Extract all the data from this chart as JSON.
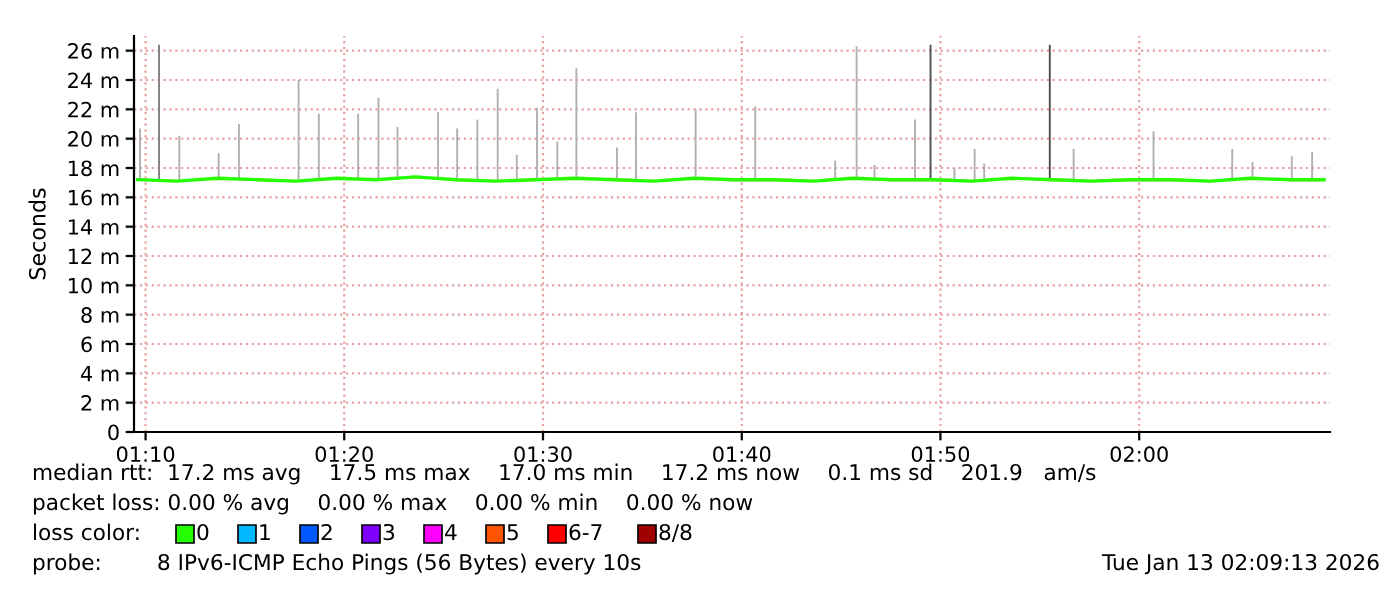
{
  "chart_data": {
    "type": "line",
    "ylabel": "Seconds",
    "xlim": [
      1.157,
      2.16
    ],
    "xticks": [
      {
        "value": 1.1667,
        "label": "01:10"
      },
      {
        "value": 1.3333,
        "label": "01:20"
      },
      {
        "value": 1.5,
        "label": "01:30"
      },
      {
        "value": 1.6667,
        "label": "01:40"
      },
      {
        "value": 1.8333,
        "label": "01:50"
      },
      {
        "value": 2.0,
        "label": "02:00"
      }
    ],
    "ylim": [
      0,
      27
    ],
    "yticks": [
      0,
      {
        "value": 2,
        "label": "2 m"
      },
      {
        "value": 4,
        "label": "4 m"
      },
      {
        "value": 6,
        "label": "6 m"
      },
      {
        "value": 8,
        "label": "8 m"
      },
      {
        "value": 10,
        "label": "10 m"
      },
      {
        "value": 12,
        "label": "12 m"
      },
      {
        "value": 14,
        "label": "14 m"
      },
      {
        "value": 16,
        "label": "16 m"
      },
      {
        "value": 18,
        "label": "18 m"
      },
      {
        "value": 20,
        "label": "20 m"
      },
      {
        "value": 22,
        "label": "22 m"
      },
      {
        "value": 24,
        "label": "24 m"
      },
      {
        "value": 26,
        "label": "26 m"
      }
    ],
    "grid": true,
    "legend": "bottom",
    "legend_title": "loss color:",
    "series": [
      {
        "type": "bar",
        "x": [
          1.162,
          1.178,
          1.195,
          1.228,
          1.245,
          1.295,
          1.312,
          1.345,
          1.362,
          1.378,
          1.412,
          1.428,
          1.445,
          1.462,
          1.478,
          1.495,
          1.512,
          1.528,
          1.562,
          1.578,
          1.628,
          1.678,
          1.745,
          1.763,
          1.778,
          1.812,
          1.825,
          1.845,
          1.862,
          1.87,
          1.925,
          1.945,
          2.012,
          2.078,
          2.095,
          2.128,
          2.145
        ],
        "base": [
          17.2,
          17.2,
          17.2,
          17.2,
          17.2,
          17.2,
          17.2,
          17.2,
          17.2,
          17.2,
          17.2,
          17.2,
          17.2,
          17.2,
          17.2,
          17.2,
          17.2,
          17.2,
          17.2,
          17.2,
          17.2,
          17.2,
          17.2,
          17.2,
          17.2,
          17.2,
          17.2,
          17.2,
          17.2,
          17.2,
          17.2,
          17.2,
          17.2,
          17.2,
          17.2,
          17.2,
          17.2
        ],
        "values": [
          3.5,
          9.2,
          3.0,
          1.8,
          3.8,
          6.8,
          4.5,
          4.5,
          5.6,
          3.6,
          4.6,
          3.5,
          4.1,
          6.2,
          1.7,
          4.9,
          2.6,
          7.6,
          2.2,
          4.6,
          4.8,
          5.0,
          1.3,
          9.1,
          1.0,
          4.1,
          9.2,
          0.8,
          2.1,
          1.1,
          9.2,
          2.1,
          3.3,
          2.1,
          1.2,
          1.6,
          1.9
        ],
        "colors": [
          "#b0b0b0",
          "#808080",
          "#b0b0b0",
          "#b0b0b0",
          "#b0b0b0",
          "#b0b0b0",
          "#b0b0b0",
          "#b0b0b0",
          "#b0b0b0",
          "#b0b0b0",
          "#b0b0b0",
          "#b0b0b0",
          "#b0b0b0",
          "#b0b0b0",
          "#b0b0b0",
          "#b0b0b0",
          "#b0b0b0",
          "#b0b0b0",
          "#b0b0b0",
          "#b0b0b0",
          "#b0b0b0",
          "#b0b0b0",
          "#b0b0b0",
          "#b0b0b0",
          "#b0b0b0",
          "#b0b0b0",
          "#505050",
          "#b0b0b0",
          "#b0b0b0",
          "#b0b0b0",
          "#505050",
          "#b0b0b0",
          "#b0b0b0",
          "#b0b0b0",
          "#b0b0b0",
          "#b0b0b0",
          "#b0b0b0"
        ]
      },
      {
        "name": "0",
        "color": "#26ff00",
        "x": [
          1.16,
          1.193,
          1.227,
          1.26,
          1.293,
          1.327,
          1.36,
          1.393,
          1.427,
          1.46,
          1.493,
          1.527,
          1.56,
          1.593,
          1.627,
          1.66,
          1.693,
          1.727,
          1.76,
          1.793,
          1.827,
          1.86,
          1.893,
          1.927,
          1.96,
          1.993,
          2.027,
          2.06,
          2.093,
          2.127,
          2.155
        ],
        "values": [
          17.2,
          17.1,
          17.3,
          17.2,
          17.1,
          17.3,
          17.2,
          17.4,
          17.2,
          17.1,
          17.2,
          17.3,
          17.2,
          17.1,
          17.3,
          17.2,
          17.2,
          17.1,
          17.3,
          17.2,
          17.2,
          17.1,
          17.3,
          17.2,
          17.1,
          17.2,
          17.2,
          17.1,
          17.3,
          17.2,
          17.2
        ]
      },
      {
        "name": "1",
        "color": "#00b8ff"
      },
      {
        "name": "2",
        "color": "#0059ff"
      },
      {
        "name": "3",
        "color": "#7e00ff"
      },
      {
        "name": "4",
        "color": "#ff00ff"
      },
      {
        "name": "5",
        "color": "#ff5500"
      },
      {
        "name": "6-7",
        "color": "#ff0000"
      },
      {
        "name": "8/8",
        "color": "#a10000"
      }
    ],
    "annotations": [
      "median rtt:  17.2 ms avg    17.5 ms max    17.0 ms min    17.2 ms now    0.1 ms sd    201.9   am/s",
      "packet loss: 0.00 % avg    0.00 % max    0.00 % min    0.00 % now",
      "probe:        8 IPv6-ICMP Echo Pings (56 Bytes) every 10s",
      "Tue Jan 13 02:09:13 2026"
    ]
  }
}
